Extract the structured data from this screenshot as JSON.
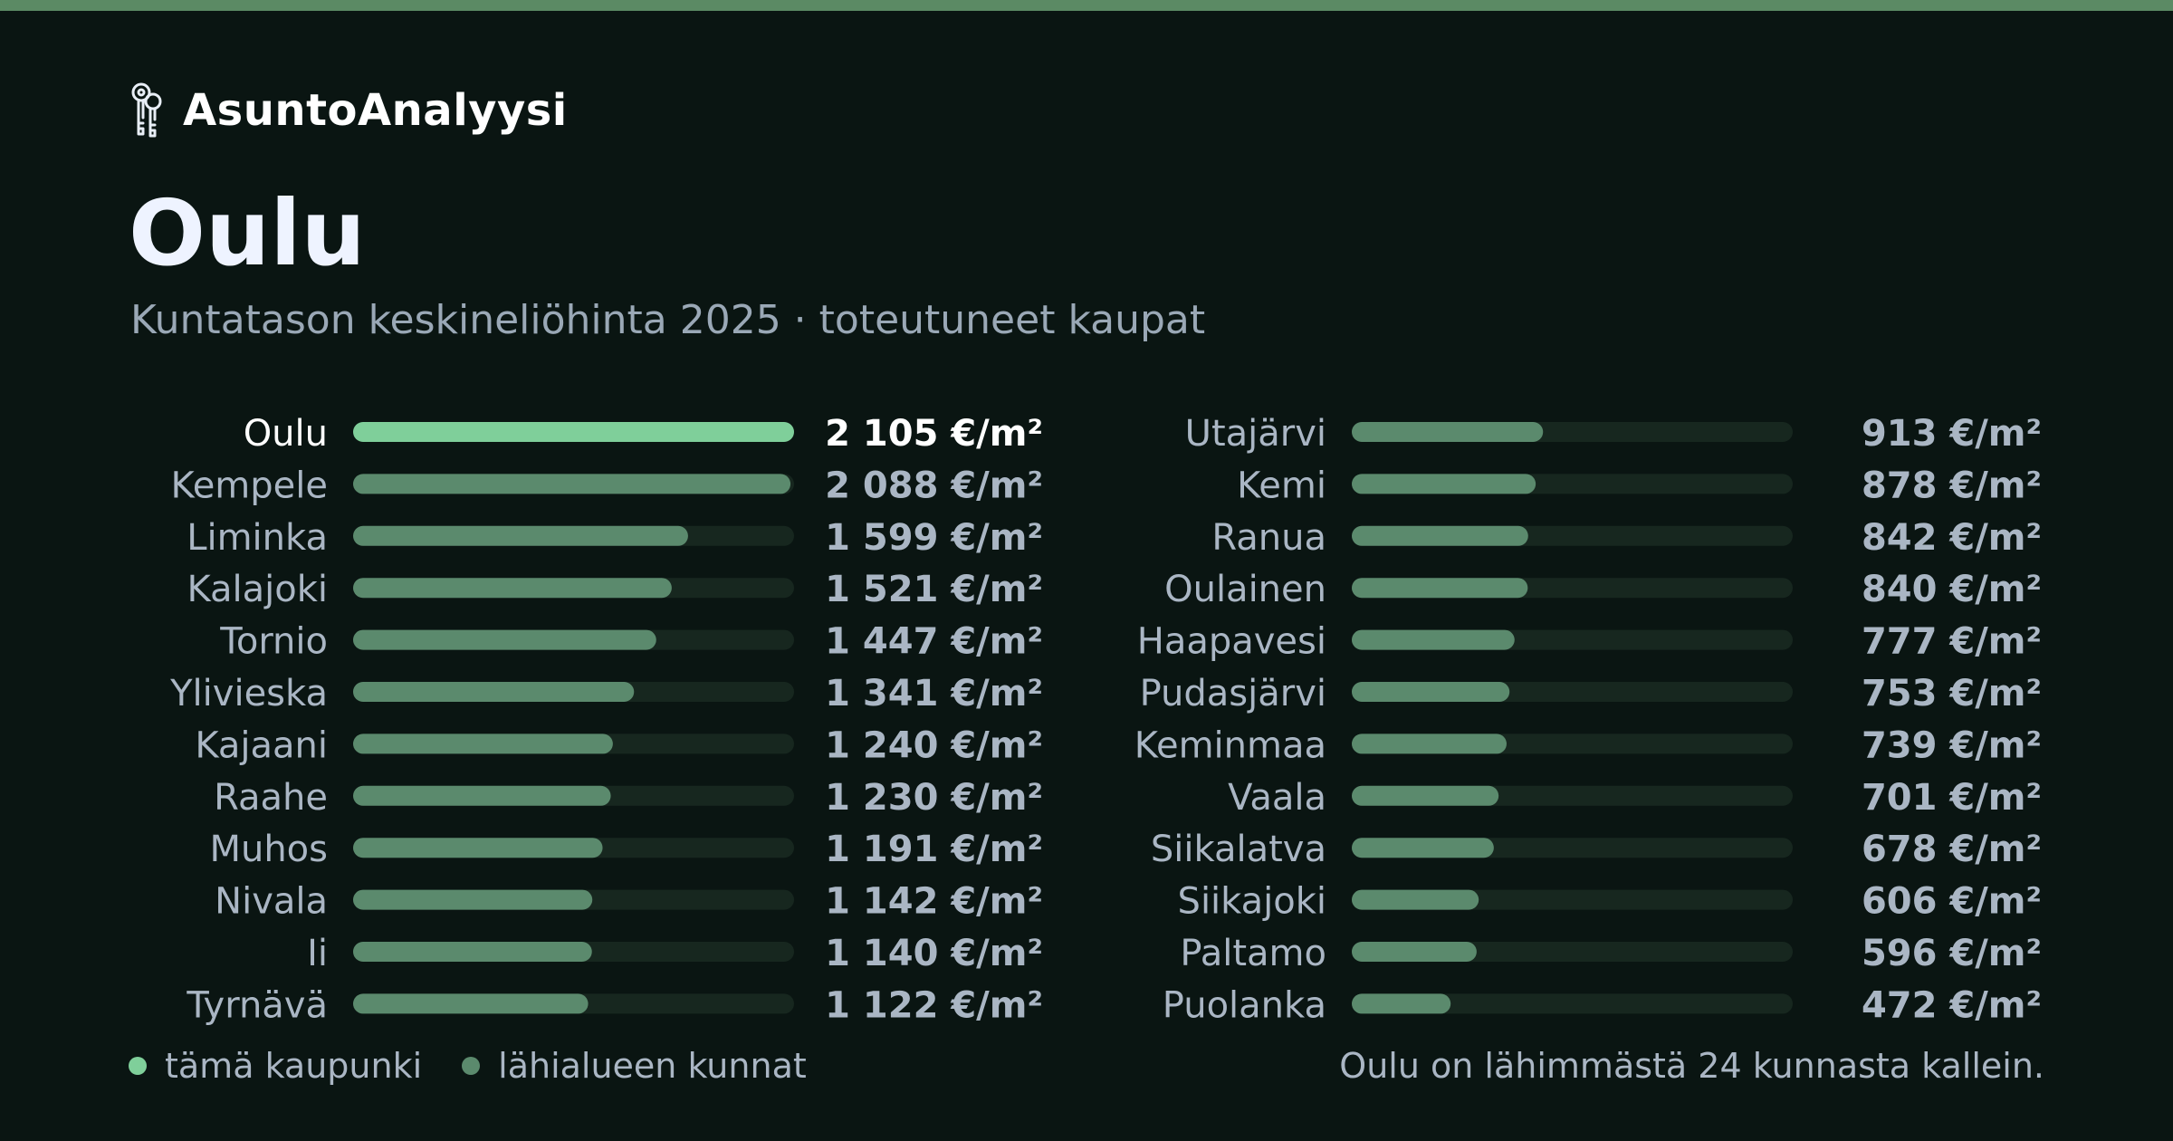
{
  "brand": {
    "name": "AsuntoAnalyysi",
    "icon": "keys-icon"
  },
  "title": "Oulu",
  "subtitle": "Kuntatason keskineliöhinta 2025 · toteutuneet kaupat",
  "legend": {
    "this_city": "tämä kaupunki",
    "nearby": "lähialueen kunnat"
  },
  "note": "Oulu on lähimmästä 24 kunnasta kallein.",
  "colors": {
    "accent": "#7fcf9a",
    "nearby": "#5b8a6d",
    "track": "#17271f",
    "top_bar": "#5b8a64",
    "background": "#0a1512"
  },
  "chart_data": {
    "type": "bar",
    "orientation": "horizontal",
    "unit": "€/m²",
    "xlim": [
      0,
      2105
    ],
    "highlight": "Oulu",
    "categories": [
      "Oulu",
      "Kempele",
      "Liminka",
      "Kalajoki",
      "Tornio",
      "Ylivieska",
      "Kajaani",
      "Raahe",
      "Muhos",
      "Nivala",
      "Ii",
      "Tyrnävä",
      "Utajärvi",
      "Kemi",
      "Ranua",
      "Oulainen",
      "Haapavesi",
      "Pudasjärvi",
      "Keminmaa",
      "Vaala",
      "Siikalatva",
      "Siikajoki",
      "Paltamo",
      "Puolanka"
    ],
    "values": [
      2105,
      2088,
      1599,
      1521,
      1447,
      1341,
      1240,
      1230,
      1191,
      1142,
      1140,
      1122,
      913,
      878,
      842,
      840,
      777,
      753,
      739,
      701,
      678,
      606,
      596,
      472
    ],
    "value_labels": [
      "2 105 €/m²",
      "2 088 €/m²",
      "1 599 €/m²",
      "1 521 €/m²",
      "1 447 €/m²",
      "1 341 €/m²",
      "1 240 €/m²",
      "1 230 €/m²",
      "1 191 €/m²",
      "1 142 €/m²",
      "1 140 €/m²",
      "1 122 €/m²",
      "913 €/m²",
      "878 €/m²",
      "842 €/m²",
      "840 €/m²",
      "777 €/m²",
      "753 €/m²",
      "739 €/m²",
      "701 €/m²",
      "678 €/m²",
      "606 €/m²",
      "596 €/m²",
      "472 €/m²"
    ]
  }
}
